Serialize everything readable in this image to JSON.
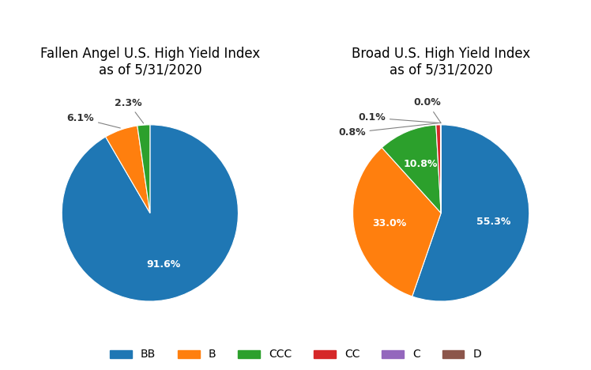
{
  "chart_data": [
    {
      "type": "pie",
      "title": "Fallen Angel U.S. High Yield Index\nas of 5/31/2020",
      "categories": [
        "BB",
        "B",
        "CCC"
      ],
      "values": [
        91.6,
        6.1,
        2.3
      ],
      "data_labels": true,
      "value_labels": [
        "91.6%",
        "6.1%",
        "2.3%"
      ]
    },
    {
      "type": "pie",
      "title": "Broad U.S. High Yield Index\nas of 5/31/2020",
      "categories": [
        "BB",
        "B",
        "CCC",
        "CC",
        "C",
        "D"
      ],
      "values": [
        55.3,
        33.0,
        10.8,
        0.8,
        0.1,
        0.0
      ],
      "data_labels": true,
      "value_labels": [
        "55.3%",
        "33.0%",
        "10.8%",
        "0.8%",
        "0.1%",
        "0.0%"
      ],
      "legend": "lower center"
    }
  ]
}
